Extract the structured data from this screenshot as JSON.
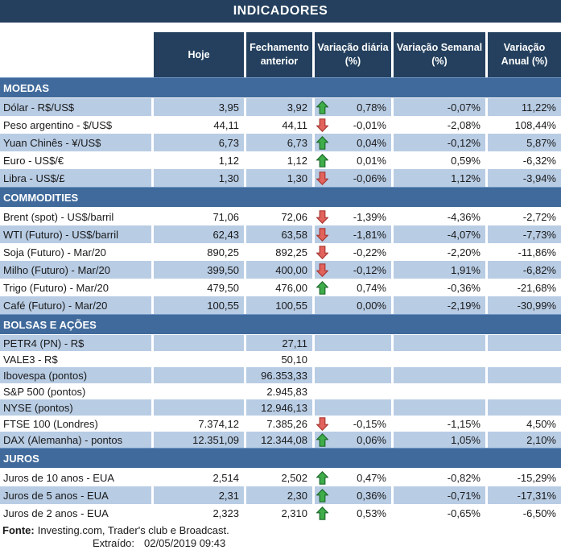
{
  "title": "INDICADORES",
  "columns": [
    "Hoje",
    "Fechamento anterior",
    "Variação diária (%)",
    "Variação Semanal (%)",
    "Variação Anual (%)"
  ],
  "colors": {
    "header_navy": "#24405E",
    "section_bar_blue": "#406A9B",
    "row_light_blue": "#B8CCE4",
    "arrow_up_fill": "#3FAD49",
    "arrow_up_border": "#1F6B2D",
    "arrow_down_fill": "#E2635C",
    "arrow_down_border": "#A83833"
  },
  "sections": [
    {
      "name": "MOEDAS",
      "first_row_shaded": true,
      "dense_rows": false,
      "rows": [
        {
          "label": "Dólar - R$/US$",
          "hoje": "3,95",
          "fechamento": "3,92",
          "arrow": "up",
          "var_diaria": "0,78%",
          "var_semanal": "-0,07%",
          "var_anual": "11,22%"
        },
        {
          "label": "Peso argentino - $/US$",
          "hoje": "44,11",
          "fechamento": "44,11",
          "arrow": "down",
          "var_diaria": "-0,01%",
          "var_semanal": "-2,08%",
          "var_anual": "108,44%"
        },
        {
          "label": "Yuan Chinês - ¥/US$",
          "hoje": "6,73",
          "fechamento": "6,73",
          "arrow": "up",
          "var_diaria": "0,04%",
          "var_semanal": "-0,12%",
          "var_anual": "5,87%"
        },
        {
          "label": "Euro - US$/€",
          "hoje": "1,12",
          "fechamento": "1,12",
          "arrow": "up",
          "var_diaria": "0,01%",
          "var_semanal": "0,59%",
          "var_anual": "-6,32%"
        },
        {
          "label": "Libra - US$/£",
          "hoje": "1,30",
          "fechamento": "1,30",
          "arrow": "down",
          "var_diaria": "-0,06%",
          "var_semanal": "1,12%",
          "var_anual": "-3,94%"
        }
      ]
    },
    {
      "name": "COMMODITIES",
      "first_row_shaded": false,
      "dense_rows": false,
      "rows": [
        {
          "label": "Brent (spot) - US$/barril",
          "hoje": "71,06",
          "fechamento": "72,06",
          "arrow": "down",
          "var_diaria": "-1,39%",
          "var_semanal": "-4,36%",
          "var_anual": "-2,72%"
        },
        {
          "label": "WTI (Futuro) - US$/barril",
          "hoje": "62,43",
          "fechamento": "63,58",
          "arrow": "down",
          "var_diaria": "-1,81%",
          "var_semanal": "-4,07%",
          "var_anual": "-7,73%"
        },
        {
          "label": "Soja (Futuro) - Mar/20",
          "hoje": "890,25",
          "fechamento": "892,25",
          "arrow": "down",
          "var_diaria": "-0,22%",
          "var_semanal": "-2,20%",
          "var_anual": "-11,86%"
        },
        {
          "label": "Milho (Futuro) - Mar/20",
          "hoje": "399,50",
          "fechamento": "400,00",
          "arrow": "down",
          "var_diaria": "-0,12%",
          "var_semanal": "1,91%",
          "var_anual": "-6,82%"
        },
        {
          "label": "Trigo (Futuro) - Mar/20",
          "hoje": "479,50",
          "fechamento": "476,00",
          "arrow": "up",
          "var_diaria": "0,74%",
          "var_semanal": "-0,36%",
          "var_anual": "-21,68%"
        },
        {
          "label": "Café (Futuro) - Mar/20",
          "hoje": "100,55",
          "fechamento": "100,55",
          "arrow": null,
          "var_diaria": "0,00%",
          "var_semanal": "-2,19%",
          "var_anual": "-30,99%"
        }
      ]
    },
    {
      "name": "BOLSAS E AÇÕES",
      "first_row_shaded": true,
      "dense_rows": true,
      "rows": [
        {
          "label": "PETR4 (PN) - R$",
          "hoje": "",
          "fechamento": "27,11",
          "arrow": null,
          "var_diaria": "",
          "var_semanal": "",
          "var_anual": ""
        },
        {
          "label": "VALE3 - R$",
          "hoje": "",
          "fechamento": "50,10",
          "arrow": null,
          "var_diaria": "",
          "var_semanal": "",
          "var_anual": ""
        },
        {
          "label": "Ibovespa (pontos)",
          "hoje": "",
          "fechamento": "96.353,33",
          "arrow": null,
          "var_diaria": "",
          "var_semanal": "",
          "var_anual": ""
        },
        {
          "label": "S&P 500 (pontos)",
          "hoje": "",
          "fechamento": "2.945,83",
          "arrow": null,
          "var_diaria": "",
          "var_semanal": "",
          "var_anual": ""
        },
        {
          "label": "NYSE (pontos)",
          "hoje": "",
          "fechamento": "12.946,13",
          "arrow": null,
          "var_diaria": "",
          "var_semanal": "",
          "var_anual": ""
        },
        {
          "label": "FTSE 100 (Londres)",
          "hoje": "7.374,12",
          "fechamento": "7.385,26",
          "arrow": "down",
          "var_diaria": "-0,15%",
          "var_semanal": "-1,15%",
          "var_anual": "4,50%"
        },
        {
          "label": "DAX (Alemanha) - pontos",
          "hoje": "12.351,09",
          "fechamento": "12.344,08",
          "arrow": "up",
          "var_diaria": "0,06%",
          "var_semanal": "1,05%",
          "var_anual": "2,10%"
        }
      ]
    },
    {
      "name": "JUROS",
      "first_row_shaded": false,
      "dense_rows": false,
      "rows": [
        {
          "label": "Juros de 10 anos - EUA",
          "hoje": "2,514",
          "fechamento": "2,502",
          "arrow": "up",
          "var_diaria": "0,47%",
          "var_semanal": "-0,82%",
          "var_anual": "-15,29%"
        },
        {
          "label": "Juros de 5 anos - EUA",
          "hoje": "2,31",
          "fechamento": "2,30",
          "arrow": "up",
          "var_diaria": "0,36%",
          "var_semanal": "-0,71%",
          "var_anual": "-17,31%"
        },
        {
          "label": "Juros de 2 anos - EUA",
          "hoje": "2,323",
          "fechamento": "2,310",
          "arrow": "up",
          "var_diaria": "0,53%",
          "var_semanal": "-0,65%",
          "var_anual": "-6,50%"
        }
      ]
    }
  ],
  "footer": {
    "fonte_label": "Fonte:",
    "fonte_text": "Investing.com, Trader's club e Broadcast.",
    "extraido_label": "Extraído:",
    "extraido_value": "02/05/2019 09:43"
  }
}
